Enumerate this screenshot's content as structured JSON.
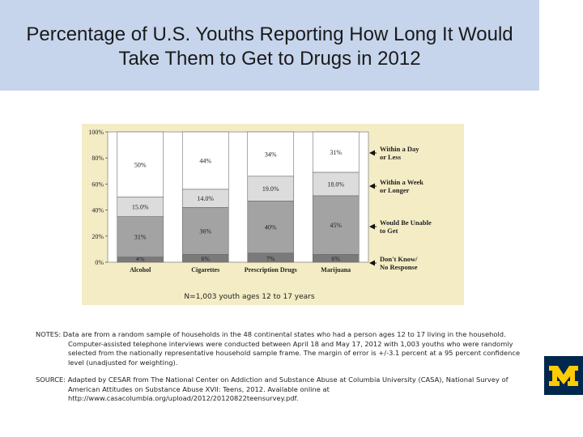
{
  "slide": {
    "title_line1": "Percentage of U.S. Youths Reporting How Long It Would",
    "title_line2": "Take Them to Get to Drugs in 2012"
  },
  "chart_data": {
    "type": "bar",
    "stacked": true,
    "categories": [
      "Alcohol",
      "Cigarettes",
      "Prescription Drugs",
      "Marijuana"
    ],
    "series": [
      {
        "name": "Don't Know/ No Response",
        "values": [
          4,
          6,
          7,
          6
        ],
        "labels": [
          "4%",
          "6%",
          "7%",
          "6%"
        ],
        "color": "#7a7a7a"
      },
      {
        "name": "Would Be Unable to Get",
        "values": [
          31,
          36,
          40,
          45
        ],
        "labels": [
          "31%",
          "36%",
          "40%",
          "45%"
        ],
        "color": "#a3a3a3"
      },
      {
        "name": "Within a Week or Longer",
        "values": [
          15,
          14,
          19,
          18
        ],
        "labels": [
          "15.0%",
          "14.0%",
          "19.0%",
          "18.0%"
        ],
        "color": "#dcdcdc"
      },
      {
        "name": "Within a Day or Less",
        "values": [
          50,
          44,
          34,
          31
        ],
        "labels": [
          "50%",
          "44%",
          "34%",
          "31%"
        ],
        "color": "#ffffff"
      }
    ],
    "legend": [
      "Within a Day or Less",
      "Within a Week or Longer",
      "Would Be Unable to Get",
      "Don't Know/ No Response"
    ],
    "ytick_labels": [
      "0%",
      "20%",
      "40%",
      "60%",
      "80%",
      "100%"
    ],
    "ylim": [
      0,
      100
    ],
    "grid": false,
    "legend_position": "right",
    "annotation": "N=1,003 youth ages 12 to 17 years"
  },
  "notes": {
    "notes_text": "NOTES:  Data are from a random sample of households in the 48 continental states who had a person ages 12 to 17 living in the household. Computer-assisted telephone interviews were conducted between April 18 and May 17, 2012 with 1,003 youths who were randomly selected from the nationally representative household sample frame. The margin of error is +/-3.1 percent at a 95 percent confidence level (unadjusted for weighting).",
    "source_text": "SOURCE:  Adapted by CESAR from The National Center on Addiction and Substance Abuse at Columbia University (CASA), National Survey of American Attitudes on Substance Abuse XVII: Teens, 2012. Available online at http://www.casacolumbia.org/upload/2012/20120822teensurvey.pdf."
  },
  "logo": {
    "letter": "M",
    "color": "#ffcb05",
    "background": "#00274c"
  }
}
